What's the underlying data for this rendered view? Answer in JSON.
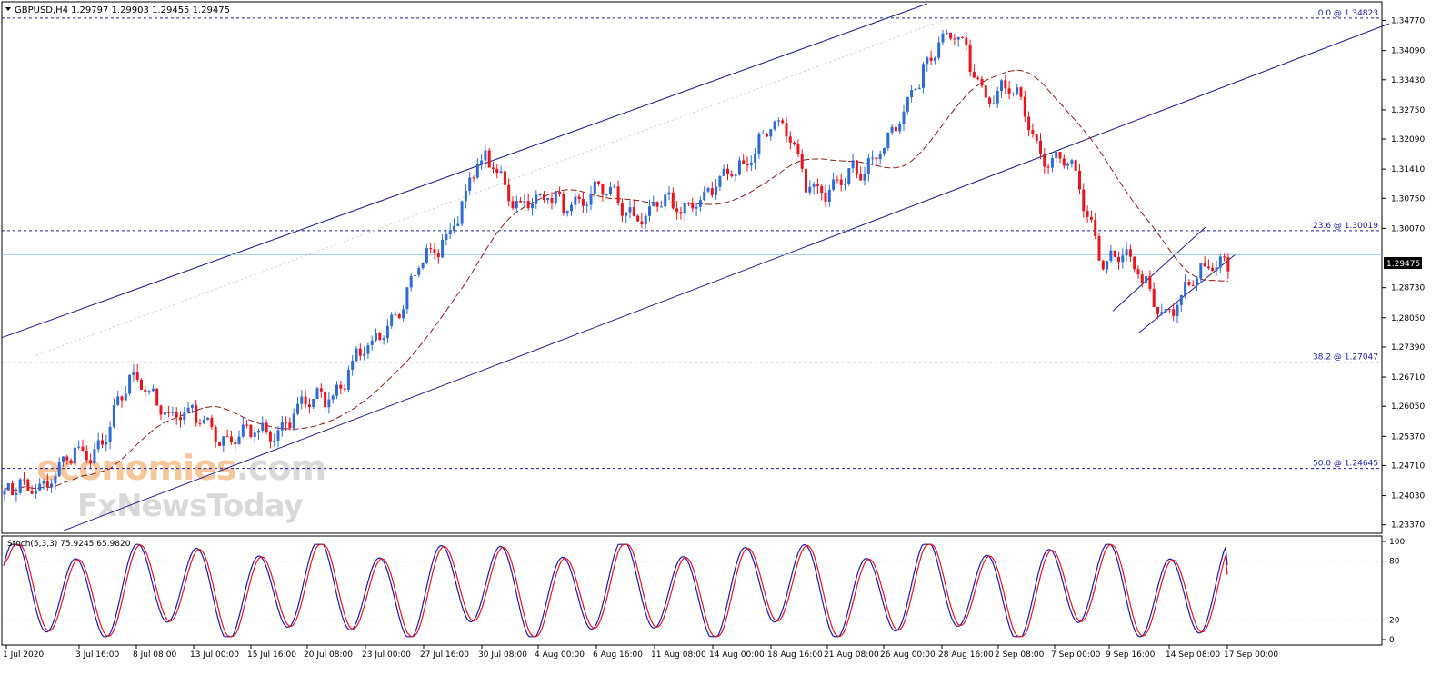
{
  "header": {
    "symbol": "GBPUSD,H4",
    "ohlc": "1.29797 1.29903 1.29455 1.29475"
  },
  "indicator": {
    "label": "Stoch(5,3,3) 75.9245 65.9820",
    "levels": [
      "100",
      "80",
      "20",
      "0"
    ]
  },
  "current_price": "1.29475",
  "watermark": {
    "line1": "economies.com",
    "line2": "FxNewsToday"
  },
  "colors": {
    "bull": "#2e6bd6",
    "bear": "#e8141e",
    "ma": "#8b1a1a",
    "channel": "#1a1a8c",
    "fib": "#1a1aa0",
    "stoch_main": "#1a1ab0",
    "stoch_signal": "#e8141e",
    "watermark_orange": "#f6c79a",
    "watermark_gray": "#d9d9d9"
  },
  "chart_data": {
    "type": "candlestick",
    "symbol": "GBPUSD",
    "timeframe": "H4",
    "x_tick_labels": [
      "1 Jul 2020",
      "3 Jul 16:00",
      "8 Jul 08:00",
      "13 Jul 00:00",
      "15 Jul 16:00",
      "20 Jul 08:00",
      "23 Jul 00:00",
      "27 Jul 16:00",
      "30 Jul 08:00",
      "4 Aug 00:00",
      "6 Aug 16:00",
      "11 Aug 08:00",
      "14 Aug 00:00",
      "18 Aug 16:00",
      "21 Aug 08:00",
      "26 Aug 00:00",
      "28 Aug 16:00",
      "2 Sep 08:00",
      "7 Sep 00:00",
      "9 Sep 16:00",
      "14 Sep 08:00",
      "17 Sep 00:00"
    ],
    "y_tick_labels": [
      "1.34770",
      "1.34090",
      "1.33430",
      "1.32750",
      "1.32090",
      "1.31410",
      "1.30750",
      "1.30070",
      "1.28730",
      "1.28050",
      "1.27390",
      "1.26710",
      "1.26050",
      "1.25370",
      "1.24710",
      "1.24030",
      "1.23370"
    ],
    "ylim": [
      1.232,
      1.3515
    ],
    "fibonacci": [
      {
        "label": "0.0 @ 1.34823",
        "price": 1.34823
      },
      {
        "label": "23.6 @ 1.30019",
        "price": 1.30019
      },
      {
        "label": "38.2 @ 1.27047",
        "price": 1.27047
      },
      {
        "label": "50.0 @ 1.24645",
        "price": 1.24645
      }
    ],
    "anchors": [
      {
        "x": "1 Jul 2020",
        "price": 1.24
      },
      {
        "x": "3 Jul 16:00",
        "price": 1.248
      },
      {
        "x": "8 Jul 08:00",
        "price": 1.265
      },
      {
        "x": "13 Jul 00:00",
        "price": 1.257
      },
      {
        "x": "15 Jul 16:00",
        "price": 1.253
      },
      {
        "x": "20 Jul 08:00",
        "price": 1.26
      },
      {
        "x": "23 Jul 00:00",
        "price": 1.272
      },
      {
        "x": "27 Jul 16:00",
        "price": 1.292
      },
      {
        "x": "30 Jul 08:00",
        "price": 1.314
      },
      {
        "x": "4 Aug 00:00",
        "price": 1.306
      },
      {
        "x": "6 Aug 16:00",
        "price": 1.308
      },
      {
        "x": "11 Aug 08:00",
        "price": 1.304
      },
      {
        "x": "14 Aug 00:00",
        "price": 1.309
      },
      {
        "x": "18 Aug 16:00",
        "price": 1.323
      },
      {
        "x": "21 Aug 08:00",
        "price": 1.309
      },
      {
        "x": "26 Aug 00:00",
        "price": 1.319
      },
      {
        "x": "28 Aug 16:00",
        "price": 1.344
      },
      {
        "x": "2 Sep 08:00",
        "price": 1.332
      },
      {
        "x": "7 Sep 00:00",
        "price": 1.317
      },
      {
        "x": "9 Sep 16:00",
        "price": 1.295
      },
      {
        "x": "14 Sep 08:00",
        "price": 1.283
      },
      {
        "x": "17 Sep 00:00",
        "price": 1.295
      }
    ],
    "stochastic": {
      "k": 75.9245,
      "d": 65.982,
      "levels": [
        80,
        20
      ],
      "ylim": [
        0,
        100
      ]
    },
    "last_price": 1.29475
  }
}
